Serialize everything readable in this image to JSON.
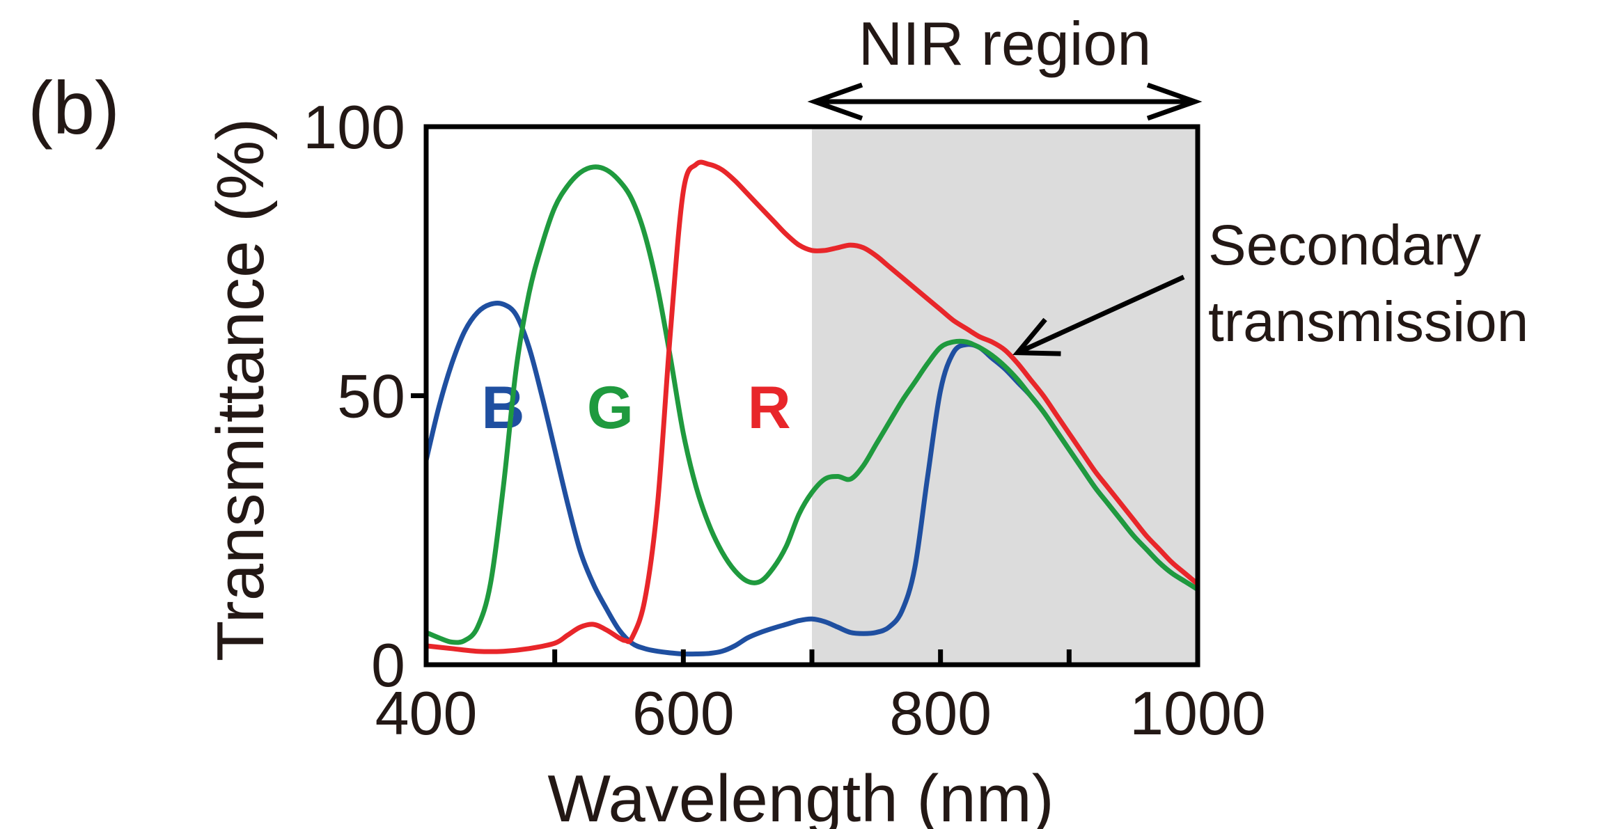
{
  "panel_label": "(b)",
  "region": {
    "label": "NIR region",
    "from": 700,
    "to": 1000,
    "shade_color": "#dcdcdc"
  },
  "annotation": {
    "lines": [
      "Secondary",
      "transmission"
    ],
    "points_to": {
      "x": 860,
      "y": 58
    }
  },
  "chart_data": {
    "type": "line",
    "title": "",
    "xlabel": "Wavelength (nm)",
    "ylabel": "Transmittance (%)",
    "xlim": [
      400,
      1000
    ],
    "ylim": [
      0,
      100
    ],
    "xticks": [
      400,
      600,
      800,
      1000
    ],
    "xticks_minor": [
      500,
      700,
      900
    ],
    "yticks": [
      0,
      50,
      100
    ],
    "grid": false,
    "legend": "inline labels",
    "series": [
      {
        "name": "B",
        "color": "#1f4fa0",
        "label_at": {
          "x": 443,
          "y": 44
        },
        "points": [
          [
            400,
            38
          ],
          [
            410,
            48
          ],
          [
            420,
            56
          ],
          [
            430,
            62
          ],
          [
            440,
            65.5
          ],
          [
            450,
            67
          ],
          [
            460,
            67
          ],
          [
            470,
            65
          ],
          [
            480,
            59
          ],
          [
            490,
            50
          ],
          [
            500,
            40
          ],
          [
            510,
            30
          ],
          [
            520,
            21
          ],
          [
            530,
            15
          ],
          [
            540,
            10.5
          ],
          [
            550,
            6.5
          ],
          [
            560,
            4
          ],
          [
            570,
            3
          ],
          [
            580,
            2.5
          ],
          [
            590,
            2.2
          ],
          [
            600,
            2
          ],
          [
            610,
            2
          ],
          [
            620,
            2.1
          ],
          [
            630,
            2.5
          ],
          [
            640,
            3.5
          ],
          [
            650,
            5
          ],
          [
            660,
            6
          ],
          [
            670,
            6.8
          ],
          [
            680,
            7.5
          ],
          [
            690,
            8.2
          ],
          [
            700,
            8.5
          ],
          [
            710,
            8
          ],
          [
            720,
            7
          ],
          [
            730,
            6
          ],
          [
            740,
            5.8
          ],
          [
            750,
            6
          ],
          [
            760,
            7
          ],
          [
            770,
            10
          ],
          [
            780,
            18
          ],
          [
            790,
            35
          ],
          [
            800,
            51
          ],
          [
            810,
            58
          ],
          [
            820,
            59.5
          ],
          [
            830,
            59
          ],
          [
            840,
            57
          ],
          [
            850,
            55
          ],
          [
            860,
            52.5
          ],
          [
            870,
            50
          ],
          [
            880,
            47
          ],
          [
            890,
            43.5
          ],
          [
            900,
            40
          ],
          [
            910,
            36.5
          ],
          [
            920,
            33
          ],
          [
            930,
            30
          ],
          [
            940,
            27
          ],
          [
            950,
            24
          ],
          [
            960,
            21.5
          ],
          [
            970,
            19
          ],
          [
            980,
            17
          ],
          [
            990,
            15.5
          ],
          [
            1000,
            14
          ]
        ]
      },
      {
        "name": "G",
        "color": "#1f9a3e",
        "label_at": {
          "x": 525,
          "y": 44
        },
        "points": [
          [
            400,
            6
          ],
          [
            410,
            5
          ],
          [
            420,
            4.2
          ],
          [
            430,
            4.5
          ],
          [
            440,
            7
          ],
          [
            450,
            15
          ],
          [
            460,
            33
          ],
          [
            470,
            55
          ],
          [
            480,
            69
          ],
          [
            490,
            78
          ],
          [
            500,
            85
          ],
          [
            510,
            89
          ],
          [
            520,
            91.5
          ],
          [
            530,
            92.5
          ],
          [
            540,
            92
          ],
          [
            550,
            90
          ],
          [
            560,
            86.5
          ],
          [
            570,
            80
          ],
          [
            580,
            70
          ],
          [
            590,
            57
          ],
          [
            600,
            43
          ],
          [
            610,
            33
          ],
          [
            620,
            26
          ],
          [
            630,
            21
          ],
          [
            640,
            17.5
          ],
          [
            650,
            15.5
          ],
          [
            660,
            15.5
          ],
          [
            670,
            18
          ],
          [
            680,
            22
          ],
          [
            690,
            28
          ],
          [
            700,
            32
          ],
          [
            710,
            34.5
          ],
          [
            720,
            35
          ],
          [
            730,
            34.5
          ],
          [
            740,
            37
          ],
          [
            750,
            41
          ],
          [
            760,
            45
          ],
          [
            770,
            49
          ],
          [
            780,
            52.5
          ],
          [
            790,
            56
          ],
          [
            800,
            59
          ],
          [
            810,
            60
          ],
          [
            820,
            60
          ],
          [
            830,
            59
          ],
          [
            840,
            57.5
          ],
          [
            850,
            55.5
          ],
          [
            860,
            53
          ],
          [
            870,
            50
          ],
          [
            880,
            47
          ],
          [
            890,
            43.5
          ],
          [
            900,
            40
          ],
          [
            910,
            36.5
          ],
          [
            920,
            33
          ],
          [
            930,
            30
          ],
          [
            940,
            27
          ],
          [
            950,
            24
          ],
          [
            960,
            21.5
          ],
          [
            970,
            19
          ],
          [
            980,
            17
          ],
          [
            990,
            15.5
          ],
          [
            1000,
            14
          ]
        ]
      },
      {
        "name": "R",
        "color": "#e8262a",
        "label_at": {
          "x": 650,
          "y": 44
        },
        "points": [
          [
            400,
            3.5
          ],
          [
            420,
            3
          ],
          [
            440,
            2.5
          ],
          [
            460,
            2.5
          ],
          [
            480,
            3
          ],
          [
            500,
            4
          ],
          [
            510,
            5.5
          ],
          [
            520,
            7
          ],
          [
            530,
            7.5
          ],
          [
            540,
            6.5
          ],
          [
            550,
            5
          ],
          [
            555,
            4.5
          ],
          [
            560,
            5
          ],
          [
            570,
            12
          ],
          [
            580,
            30
          ],
          [
            590,
            62
          ],
          [
            600,
            88
          ],
          [
            610,
            93
          ],
          [
            620,
            93
          ],
          [
            630,
            92
          ],
          [
            640,
            90
          ],
          [
            650,
            87.5
          ],
          [
            660,
            85
          ],
          [
            670,
            82.5
          ],
          [
            680,
            80
          ],
          [
            690,
            78
          ],
          [
            700,
            77
          ],
          [
            710,
            77
          ],
          [
            720,
            77.5
          ],
          [
            730,
            78
          ],
          [
            740,
            77.5
          ],
          [
            750,
            76
          ],
          [
            760,
            74
          ],
          [
            770,
            72
          ],
          [
            780,
            70
          ],
          [
            790,
            68
          ],
          [
            800,
            66
          ],
          [
            810,
            64
          ],
          [
            820,
            62.5
          ],
          [
            830,
            61
          ],
          [
            840,
            60
          ],
          [
            850,
            58.5
          ],
          [
            860,
            56
          ],
          [
            870,
            53
          ],
          [
            880,
            50
          ],
          [
            890,
            46.5
          ],
          [
            900,
            43
          ],
          [
            910,
            39.5
          ],
          [
            920,
            36
          ],
          [
            930,
            33
          ],
          [
            940,
            30
          ],
          [
            950,
            27
          ],
          [
            960,
            24
          ],
          [
            970,
            21.5
          ],
          [
            980,
            19
          ],
          [
            990,
            17
          ],
          [
            1000,
            15
          ]
        ]
      }
    ]
  }
}
